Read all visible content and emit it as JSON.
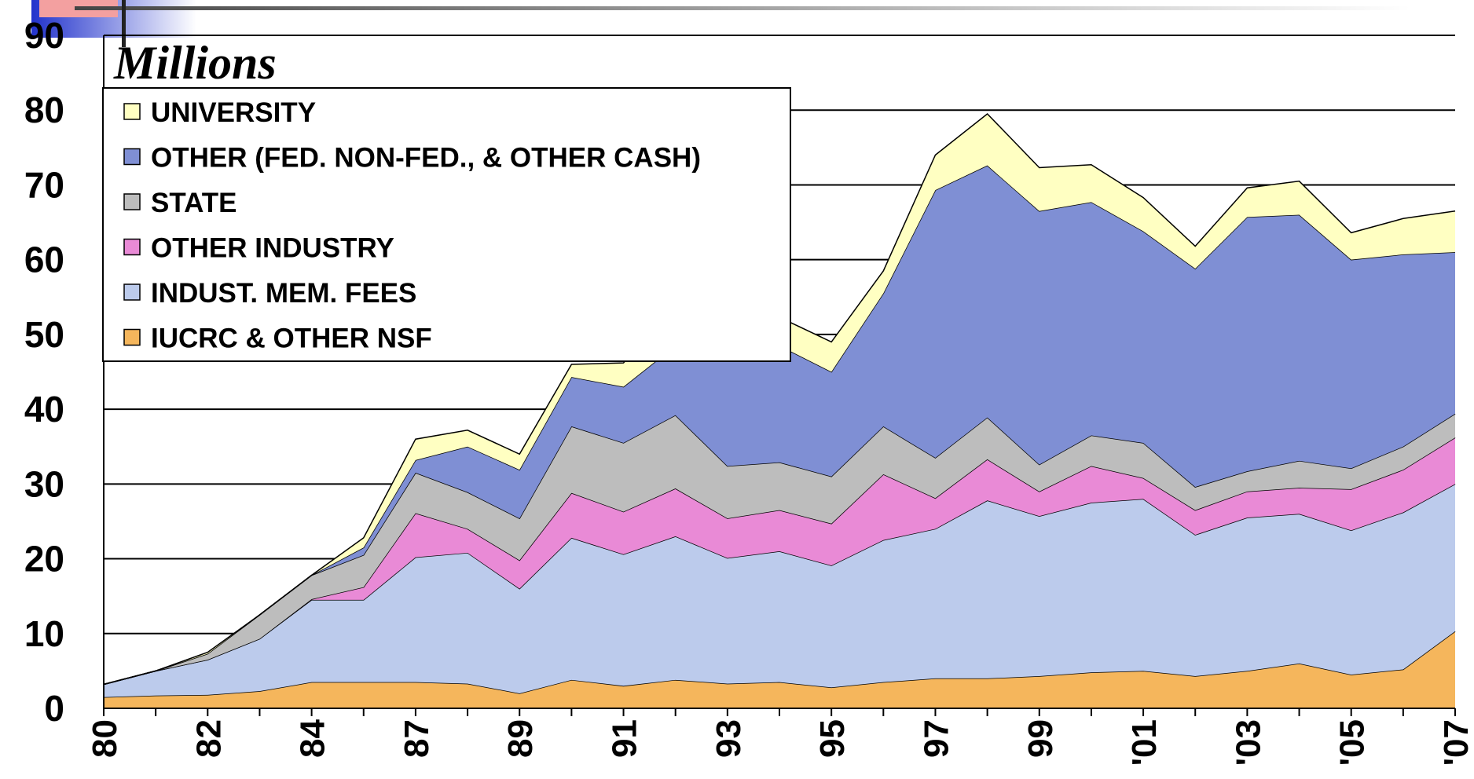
{
  "chart_data": {
    "type": "stacked_area",
    "title": "Millions",
    "categories": [
      "80",
      null,
      "82",
      null,
      "84",
      null,
      "87",
      null,
      "89",
      null,
      "91",
      null,
      "93",
      null,
      "95",
      null,
      "97",
      null,
      "99",
      null,
      "'01",
      null,
      "'03",
      null,
      "'05",
      null,
      "'07"
    ],
    "series": [
      {
        "name": "IUCRC & OTHER NSF",
        "color": "#f5b65c",
        "values": [
          1.5,
          1.7,
          1.8,
          2.3,
          3.5,
          3.5,
          3.5,
          3.3,
          2,
          3.8,
          3,
          3.8,
          3.3,
          3.5,
          2.8,
          3.5,
          4,
          4,
          4.3,
          4.8,
          5,
          4.3,
          5,
          6,
          4.5,
          5.2,
          10.3
        ]
      },
      {
        "name": "INDUST. MEM. FEES",
        "color": "#bccbec",
        "values": [
          1.7,
          3.3,
          4.7,
          7,
          11,
          11,
          16.7,
          17.5,
          14,
          19,
          17.6,
          19.2,
          16.8,
          17.5,
          16.3,
          19,
          20,
          23.8,
          21.4,
          22.7,
          23,
          18.9,
          20.5,
          20,
          19.3,
          21,
          19.7
        ]
      },
      {
        "name": "OTHER INDUSTRY",
        "color": "#e98ad6",
        "values": [
          0,
          0,
          0,
          0,
          0.1,
          1.7,
          5.9,
          3.2,
          3.8,
          6,
          5.7,
          6.4,
          5.3,
          5.5,
          5.6,
          8.8,
          4.1,
          5.5,
          3.3,
          4.9,
          2.8,
          3.3,
          3.5,
          3.5,
          5.5,
          5.7,
          6.2
        ]
      },
      {
        "name": "STATE",
        "color": "#bdbdbd",
        "values": [
          0,
          0,
          0.8,
          3.2,
          3.2,
          4.3,
          5.4,
          4.9,
          5.6,
          8.9,
          9.2,
          9.8,
          7,
          6.4,
          6.3,
          6.4,
          5.4,
          5.6,
          3.6,
          4.1,
          4.7,
          3.1,
          2.7,
          3.6,
          2.8,
          3.1,
          3.2
        ]
      },
      {
        "name": "OTHER (FED. NON-FED., & OTHER CASH)",
        "color": "#7f8fd4",
        "values": [
          0,
          0,
          0,
          0,
          0,
          1,
          1.7,
          6.1,
          6.5,
          6.6,
          7.5,
          9.3,
          15.1,
          15.6,
          14,
          17.8,
          35.8,
          33.7,
          33.9,
          31.2,
          28.3,
          29.2,
          34,
          32.9,
          27.9,
          25.7,
          21.6
        ]
      },
      {
        "name": "UNIVERSITY",
        "color": "#ffffc2",
        "values": [
          0,
          0,
          0.2,
          0,
          0,
          1.3,
          2.8,
          2.2,
          2.1,
          1.7,
          3.2,
          5.5,
          3.8,
          3.8,
          4,
          3,
          4.7,
          6.9,
          5.8,
          5,
          4.5,
          3,
          3.9,
          4.5,
          3.6,
          4.8,
          5.5
        ]
      }
    ],
    "ylim": [
      0,
      90
    ],
    "yticks": [
      0,
      10,
      20,
      30,
      40,
      50,
      60,
      70,
      80,
      90
    ],
    "grid": true
  }
}
